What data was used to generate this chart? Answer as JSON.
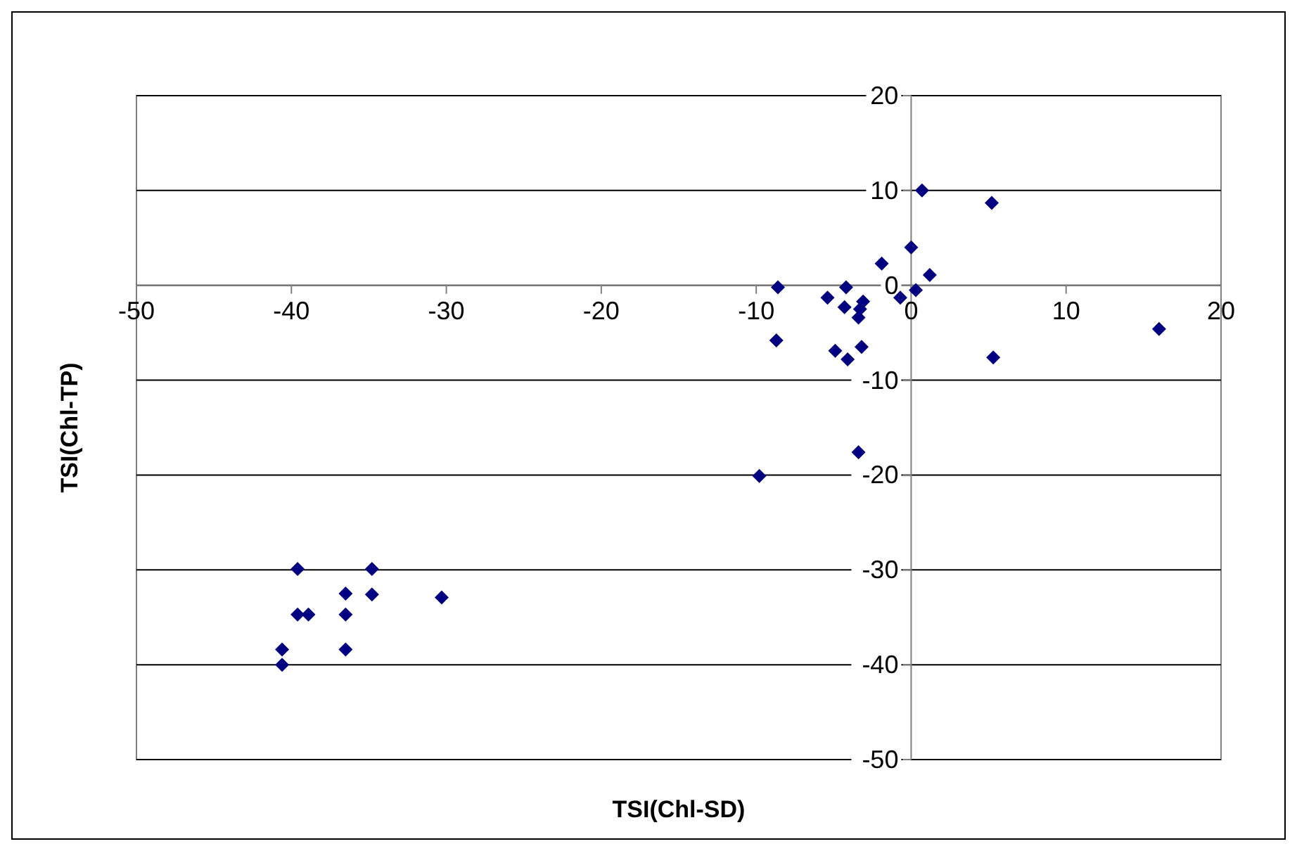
{
  "chart_data": {
    "type": "scatter",
    "xlabel": "TSI(Chl-SD)",
    "ylabel": "TSI(Chl-TP)",
    "xlim": [
      -50,
      20
    ],
    "xticks": [
      -50,
      -40,
      -30,
      -20,
      -10,
      0,
      10,
      20
    ],
    "ylim": [
      -50,
      20
    ],
    "yticks": [
      -50,
      -40,
      -30,
      -20,
      -10,
      0,
      10,
      20
    ],
    "grid": "y",
    "marker": "diamond",
    "series": [
      {
        "color": "#000080",
        "x": [
          0.7,
          5.2,
          0,
          -1.9,
          1.2,
          -8.6,
          -4.2,
          0.3,
          -5.4,
          -0.7,
          -3.1,
          -4.3,
          -3.3,
          -3.4,
          -8.7,
          -4.9,
          -3.2,
          -4.1,
          5.3,
          16.0,
          -3.4,
          -9.8,
          -39.6,
          -34.8,
          -36.5,
          -34.8,
          -30.3,
          -39.6,
          -38.9,
          -36.5,
          -40.6,
          -36.5,
          -40.6
        ],
        "values": [
          10.0,
          8.7,
          4.0,
          2.3,
          1.1,
          -0.2,
          -0.2,
          -0.5,
          -1.3,
          -1.3,
          -1.7,
          -2.3,
          -2.5,
          -3.4,
          -5.8,
          -6.9,
          -6.5,
          -7.8,
          -7.6,
          -4.6,
          -17.6,
          -20.1,
          -29.9,
          -29.9,
          -32.5,
          -32.6,
          -32.9,
          -34.7,
          -34.7,
          -34.7,
          -38.4,
          -38.4,
          -40.0
        ]
      }
    ]
  }
}
